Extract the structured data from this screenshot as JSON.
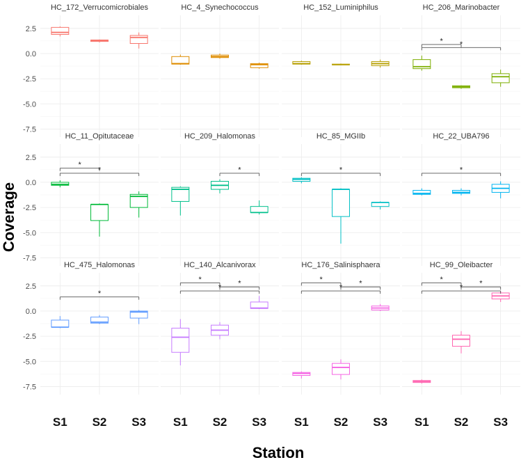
{
  "chart_data": {
    "type": "boxplot-facets",
    "ylabel": "Coverage",
    "xlabel": "Station",
    "categories": [
      "S1",
      "S2",
      "S3"
    ],
    "y_ticks": [
      2.5,
      0.0,
      -2.5,
      -5.0,
      -7.5
    ],
    "y_tick_labels": [
      "2.5",
      "0.0",
      "-2.5",
      "-5.0",
      "-7.5"
    ],
    "ylim": [
      -8.3,
      3.8
    ],
    "sig_label": "*",
    "panels": [
      {
        "title": "HC_172_Verrucomicrobiales",
        "color": "#F8766D",
        "boxes": [
          [
            1.7,
            1.9,
            2.1,
            2.6,
            2.7
          ],
          [
            1.1,
            1.2,
            1.3,
            1.35,
            1.4
          ],
          [
            0.5,
            1.0,
            1.6,
            1.8,
            2.1
          ]
        ],
        "sig": []
      },
      {
        "title": "HC_4_Synechococcus",
        "color": "#DE8C00",
        "boxes": [
          [
            -1.1,
            -1.05,
            -1.0,
            -0.3,
            -0.1
          ],
          [
            -0.5,
            -0.4,
            -0.3,
            -0.15,
            0.0
          ],
          [
            -1.5,
            -1.4,
            -1.1,
            -1.0,
            -0.9
          ]
        ],
        "sig": []
      },
      {
        "title": "HC_152_Luminiphilus",
        "color": "#B79F00",
        "boxes": [
          [
            -1.1,
            -1.05,
            -1.0,
            -0.8,
            -0.7
          ],
          [
            -1.15,
            -1.1,
            -1.1,
            -1.05,
            -1.0
          ],
          [
            -1.4,
            -1.2,
            -1.0,
            -0.8,
            -0.6
          ]
        ],
        "sig": []
      },
      {
        "title": "HC_206_Marinobacter",
        "color": "#7CAE00",
        "boxes": [
          [
            -1.7,
            -1.5,
            -1.3,
            -0.6,
            -0.2
          ],
          [
            -3.5,
            -3.4,
            -3.3,
            -3.2,
            -3.15
          ],
          [
            -3.3,
            -2.9,
            -2.3,
            -2.0,
            -1.6
          ]
        ],
        "sig": [
          [
            1,
            2,
            0.9
          ],
          [
            1,
            3,
            0.6
          ]
        ]
      },
      {
        "title": "HC_11_Opitutaceae",
        "color": "#00BA38",
        "boxes": [
          [
            -0.5,
            -0.3,
            -0.2,
            0.0,
            0.2
          ],
          [
            -5.4,
            -3.8,
            -2.2,
            -2.2,
            -2.1
          ],
          [
            -3.5,
            -2.5,
            -1.4,
            -1.2,
            -0.9
          ]
        ],
        "sig": [
          [
            1,
            2,
            1.4
          ],
          [
            1,
            3,
            0.9
          ]
        ]
      },
      {
        "title": "HC_209_Halomonas",
        "color": "#00C08B",
        "boxes": [
          [
            -3.3,
            -1.9,
            -0.7,
            -0.5,
            -0.4
          ],
          [
            -1.1,
            -0.7,
            -0.3,
            0.1,
            0.3
          ],
          [
            -3.2,
            -3.0,
            -3.0,
            -2.4,
            -1.8
          ]
        ],
        "sig": [
          [
            2,
            3,
            0.9
          ]
        ]
      },
      {
        "title": "HC_85_MGIIb",
        "color": "#00BFC4",
        "boxes": [
          [
            -0.1,
            0.1,
            0.3,
            0.4,
            0.5
          ],
          [
            -6.1,
            -3.4,
            -0.7,
            -0.7,
            -0.6
          ],
          [
            -2.7,
            -2.4,
            -2.0,
            -2.0,
            -1.9
          ]
        ],
        "sig": [
          [
            1,
            3,
            0.9
          ]
        ]
      },
      {
        "title": "HC_22_UBA796",
        "color": "#00B4F0",
        "boxes": [
          [
            -1.3,
            -1.2,
            -1.1,
            -0.8,
            -0.6
          ],
          [
            -1.3,
            -1.1,
            -1.0,
            -0.8,
            -0.6
          ],
          [
            -1.6,
            -1.0,
            -0.6,
            -0.2,
            0.1
          ]
        ],
        "sig": [
          [
            1,
            3,
            0.9
          ]
        ]
      },
      {
        "title": "HC_475_Halomonas",
        "color": "#619CFF",
        "boxes": [
          [
            -1.7,
            -1.6,
            -1.6,
            -0.9,
            -0.5
          ],
          [
            -1.3,
            -1.2,
            -1.1,
            -0.6,
            -0.4
          ],
          [
            -1.3,
            -0.7,
            -0.1,
            0.0,
            0.1
          ]
        ],
        "sig": [
          [
            1,
            3,
            1.4
          ]
        ]
      },
      {
        "title": "HC_140_Alcanivorax",
        "color": "#C77CFF",
        "boxes": [
          [
            -5.4,
            -4.1,
            -2.6,
            -1.7,
            -0.8
          ],
          [
            -2.8,
            -2.4,
            -1.9,
            -1.4,
            -1.1
          ],
          [
            0.2,
            0.25,
            0.3,
            0.9,
            1.5
          ]
        ],
        "sig": [
          [
            1,
            2,
            2.8
          ],
          [
            2,
            3,
            2.4
          ],
          [
            1,
            3,
            2.0
          ]
        ]
      },
      {
        "title": "HC_176_Salinisphaera",
        "color": "#F564E3",
        "boxes": [
          [
            -6.7,
            -6.4,
            -6.2,
            -6.1,
            -6.0
          ],
          [
            -6.8,
            -6.3,
            -5.6,
            -5.2,
            -4.8
          ],
          [
            0.0,
            0.1,
            0.3,
            0.5,
            0.7
          ]
        ],
        "sig": [
          [
            1,
            2,
            2.8
          ],
          [
            2,
            3,
            2.4
          ],
          [
            1,
            3,
            2.0
          ]
        ]
      },
      {
        "title": "HC_99_Oleibacter",
        "color": "#FF64B0",
        "boxes": [
          [
            -7.2,
            -7.1,
            -7.0,
            -6.9,
            -6.8
          ],
          [
            -4.2,
            -3.5,
            -2.8,
            -2.4,
            -2.0
          ],
          [
            0.9,
            1.2,
            1.5,
            1.8,
            2.0
          ]
        ],
        "sig": [
          [
            1,
            2,
            2.8
          ],
          [
            2,
            3,
            2.4
          ],
          [
            1,
            3,
            2.0
          ]
        ]
      }
    ]
  }
}
